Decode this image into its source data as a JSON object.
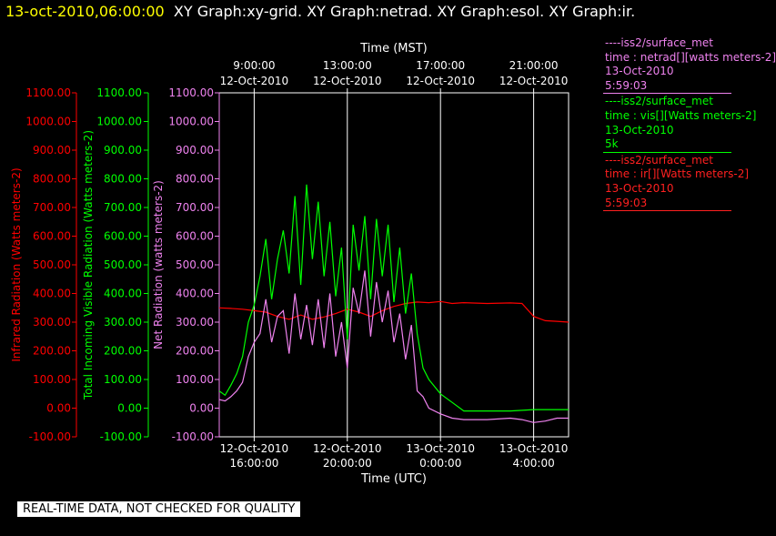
{
  "header": {
    "timestamp": "13-oct-2010,06:00:00",
    "graphs": "XY Graph:xy-grid.  XY Graph:netrad.  XY Graph:esol.  XY Graph:ir."
  },
  "legend": [
    {
      "color": "#ee82ee",
      "lines": [
        "----iss2/surface_met",
        "time : netrad[][watts meters-2]",
        "13-Oct-2010",
        "5:59:03"
      ]
    },
    {
      "color": "#00ff00",
      "lines": [
        "----iss2/surface_met",
        "time : vis[][Watts meters-2]",
        "13-Oct-2010",
        "5k"
      ]
    },
    {
      "color": "#ff2020",
      "lines": [
        "----iss2/surface_met",
        "time : ir[][Watts meters-2]",
        "13-Oct-2010",
        "5:59:03"
      ]
    }
  ],
  "notice": "REAL-TIME DATA, NOT CHECKED FOR QUALITY",
  "colors": {
    "ir": "#ff0000",
    "vis": "#00ff00",
    "net": "#ee82ee",
    "frame": "#ffffff",
    "timestamp": "#ffff00"
  },
  "chart_data": {
    "type": "line",
    "x_range_utc": [
      "2010-10-12T14:30",
      "2010-10-13T05:30"
    ],
    "xlabel_bottom": "Time (UTC)",
    "xlabel_top": "Time (MST)",
    "x_ticks_bottom": [
      {
        "t": "2010-10-12T16:00",
        "date": "12-Oct-2010",
        "time": "16:00:00"
      },
      {
        "t": "2010-10-12T20:00",
        "date": "12-Oct-2010",
        "time": "20:00:00"
      },
      {
        "t": "2010-10-13T00:00",
        "date": "13-Oct-2010",
        "time": "0:00:00"
      },
      {
        "t": "2010-10-13T04:00",
        "date": "13-Oct-2010",
        "time": "4:00:00"
      }
    ],
    "x_ticks_top": [
      {
        "t": "2010-10-12T16:00",
        "time": "9:00:00",
        "date": "12-Oct-2010"
      },
      {
        "t": "2010-10-12T20:00",
        "time": "13:00:00",
        "date": "12-Oct-2010"
      },
      {
        "t": "2010-10-13T00:00",
        "time": "17:00:00",
        "date": "12-Oct-2010"
      },
      {
        "t": "2010-10-13T04:00",
        "time": "21:00:00",
        "date": "12-Oct-2010"
      }
    ],
    "y_ticks": [
      "-100.00",
      "0.00",
      "100.00",
      "200.00",
      "300.00",
      "400.00",
      "500.00",
      "600.00",
      "700.00",
      "800.00",
      "900.00",
      "1000.00",
      "1100.00"
    ],
    "ylim": [
      -100,
      1100
    ],
    "grid": true,
    "series": [
      {
        "key": "ir",
        "name": "Infrared Radiation (Watts meters-2)",
        "x": [
          "2010-10-12T14:30",
          "2010-10-12T15:00",
          "2010-10-12T15:30",
          "2010-10-12T16:00",
          "2010-10-12T16:30",
          "2010-10-12T17:00",
          "2010-10-12T17:30",
          "2010-10-12T18:00",
          "2010-10-12T18:30",
          "2010-10-12T19:00",
          "2010-10-12T19:30",
          "2010-10-12T20:00",
          "2010-10-12T20:30",
          "2010-10-12T21:00",
          "2010-10-12T21:30",
          "2010-10-12T22:00",
          "2010-10-12T22:30",
          "2010-10-12T23:00",
          "2010-10-12T23:30",
          "2010-10-13T00:00",
          "2010-10-13T00:30",
          "2010-10-13T01:00",
          "2010-10-13T02:00",
          "2010-10-13T03:00",
          "2010-10-13T03:30",
          "2010-10-13T04:00",
          "2010-10-13T04:30",
          "2010-10-13T05:00",
          "2010-10-13T05:30"
        ],
        "y": [
          350,
          348,
          345,
          340,
          335,
          320,
          310,
          325,
          310,
          318,
          330,
          345,
          335,
          320,
          340,
          355,
          365,
          370,
          368,
          372,
          365,
          368,
          365,
          367,
          365,
          320,
          305,
          303,
          300
        ]
      },
      {
        "key": "vis",
        "name": "Total Incoming Visible Radiation (Watts meters-2)",
        "x": [
          "2010-10-12T14:30",
          "2010-10-12T14:45",
          "2010-10-12T15:00",
          "2010-10-12T15:15",
          "2010-10-12T15:30",
          "2010-10-12T15:45",
          "2010-10-12T16:00",
          "2010-10-12T16:15",
          "2010-10-12T16:30",
          "2010-10-12T16:45",
          "2010-10-12T17:00",
          "2010-10-12T17:15",
          "2010-10-12T17:30",
          "2010-10-12T17:45",
          "2010-10-12T18:00",
          "2010-10-12T18:15",
          "2010-10-12T18:30",
          "2010-10-12T18:45",
          "2010-10-12T19:00",
          "2010-10-12T19:15",
          "2010-10-12T19:30",
          "2010-10-12T19:45",
          "2010-10-12T20:00",
          "2010-10-12T20:15",
          "2010-10-12T20:30",
          "2010-10-12T20:45",
          "2010-10-12T21:00",
          "2010-10-12T21:15",
          "2010-10-12T21:30",
          "2010-10-12T21:45",
          "2010-10-12T22:00",
          "2010-10-12T22:15",
          "2010-10-12T22:30",
          "2010-10-12T22:45",
          "2010-10-12T23:00",
          "2010-10-12T23:15",
          "2010-10-12T23:30",
          "2010-10-13T00:00",
          "2010-10-13T00:30",
          "2010-10-13T01:00",
          "2010-10-13T02:00",
          "2010-10-13T03:00",
          "2010-10-13T04:00",
          "2010-10-13T05:00",
          "2010-10-13T05:30"
        ],
        "y": [
          60,
          45,
          80,
          120,
          180,
          300,
          360,
          460,
          590,
          380,
          520,
          620,
          470,
          740,
          430,
          780,
          520,
          720,
          460,
          650,
          390,
          560,
          240,
          640,
          480,
          670,
          380,
          660,
          460,
          640,
          370,
          560,
          330,
          470,
          260,
          140,
          100,
          50,
          20,
          -10,
          -10,
          -10,
          -5,
          -5,
          -5
        ]
      },
      {
        "key": "net",
        "name": "Net Radiation (watts meters-2)",
        "x": [
          "2010-10-12T14:30",
          "2010-10-12T14:45",
          "2010-10-12T15:00",
          "2010-10-12T15:15",
          "2010-10-12T15:30",
          "2010-10-12T15:45",
          "2010-10-12T16:00",
          "2010-10-12T16:15",
          "2010-10-12T16:30",
          "2010-10-12T16:45",
          "2010-10-12T17:00",
          "2010-10-12T17:15",
          "2010-10-12T17:30",
          "2010-10-12T17:45",
          "2010-10-12T18:00",
          "2010-10-12T18:15",
          "2010-10-12T18:30",
          "2010-10-12T18:45",
          "2010-10-12T19:00",
          "2010-10-12T19:15",
          "2010-10-12T19:30",
          "2010-10-12T19:45",
          "2010-10-12T20:00",
          "2010-10-12T20:15",
          "2010-10-12T20:30",
          "2010-10-12T20:45",
          "2010-10-12T21:00",
          "2010-10-12T21:15",
          "2010-10-12T21:30",
          "2010-10-12T21:45",
          "2010-10-12T22:00",
          "2010-10-12T22:15",
          "2010-10-12T22:30",
          "2010-10-12T22:45",
          "2010-10-12T23:00",
          "2010-10-12T23:15",
          "2010-10-12T23:30",
          "2010-10-13T00:00",
          "2010-10-13T00:30",
          "2010-10-13T01:00",
          "2010-10-13T02:00",
          "2010-10-13T03:00",
          "2010-10-13T03:30",
          "2010-10-13T04:00",
          "2010-10-13T04:30",
          "2010-10-13T05:00",
          "2010-10-13T05:30"
        ],
        "y": [
          30,
          25,
          40,
          60,
          90,
          180,
          230,
          260,
          380,
          230,
          320,
          340,
          190,
          400,
          240,
          360,
          220,
          380,
          210,
          400,
          180,
          300,
          140,
          420,
          330,
          480,
          250,
          440,
          300,
          410,
          230,
          330,
          170,
          290,
          60,
          40,
          0,
          -20,
          -35,
          -40,
          -40,
          -35,
          -40,
          -50,
          -45,
          -35,
          -35
        ]
      }
    ]
  }
}
